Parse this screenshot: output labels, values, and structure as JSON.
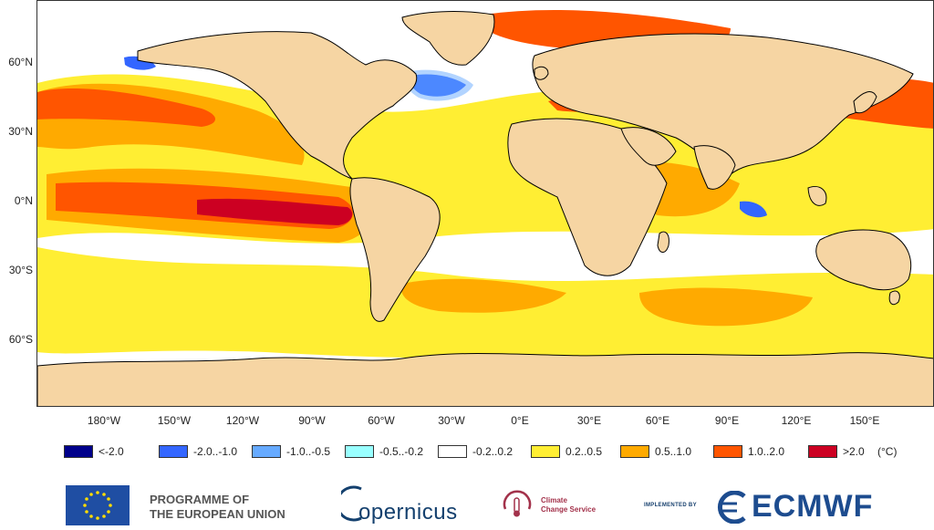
{
  "map": {
    "lat_labels": [
      "60°N",
      "30°N",
      "0°N",
      "30°S",
      "60°S"
    ],
    "lon_labels": [
      "180°W",
      "150°W",
      "120°W",
      "90°W",
      "60°W",
      "30°W",
      "0°E",
      "30°E",
      "60°E",
      "90°E",
      "120°E",
      "150°E"
    ],
    "colors": {
      "land": "#f6d5a3",
      "coastline": "#000000"
    }
  },
  "legend": {
    "items": [
      {
        "label": "<-2.0",
        "color": "#00008b"
      },
      {
        "label": "-2.0..-1.0",
        "color": "#3366ff"
      },
      {
        "label": "-1.0..-0.5",
        "color": "#66aaff"
      },
      {
        "label": "-0.5..-0.2",
        "color": "#99ffff"
      },
      {
        "label": "-0.2..0.2",
        "color": "#ffffff"
      },
      {
        "label": "0.2..0.5",
        "color": "#ffee33"
      },
      {
        "label": "0.5..1.0",
        "color": "#ffaa00"
      },
      {
        "label": "1.0..2.0",
        "color": "#ff5500"
      },
      {
        "label": ">2.0",
        "color": "#cc0022"
      }
    ],
    "unit": "(°C)"
  },
  "footer": {
    "eu_line1": "PROGRAMME OF",
    "eu_line2": "THE EUROPEAN UNION",
    "copernicus": "opernicus",
    "ccs_line1": "Climate",
    "ccs_line2": "Change Service",
    "implemented_by": "IMPLEMENTED BY",
    "ecmwf": "ECMWF"
  }
}
